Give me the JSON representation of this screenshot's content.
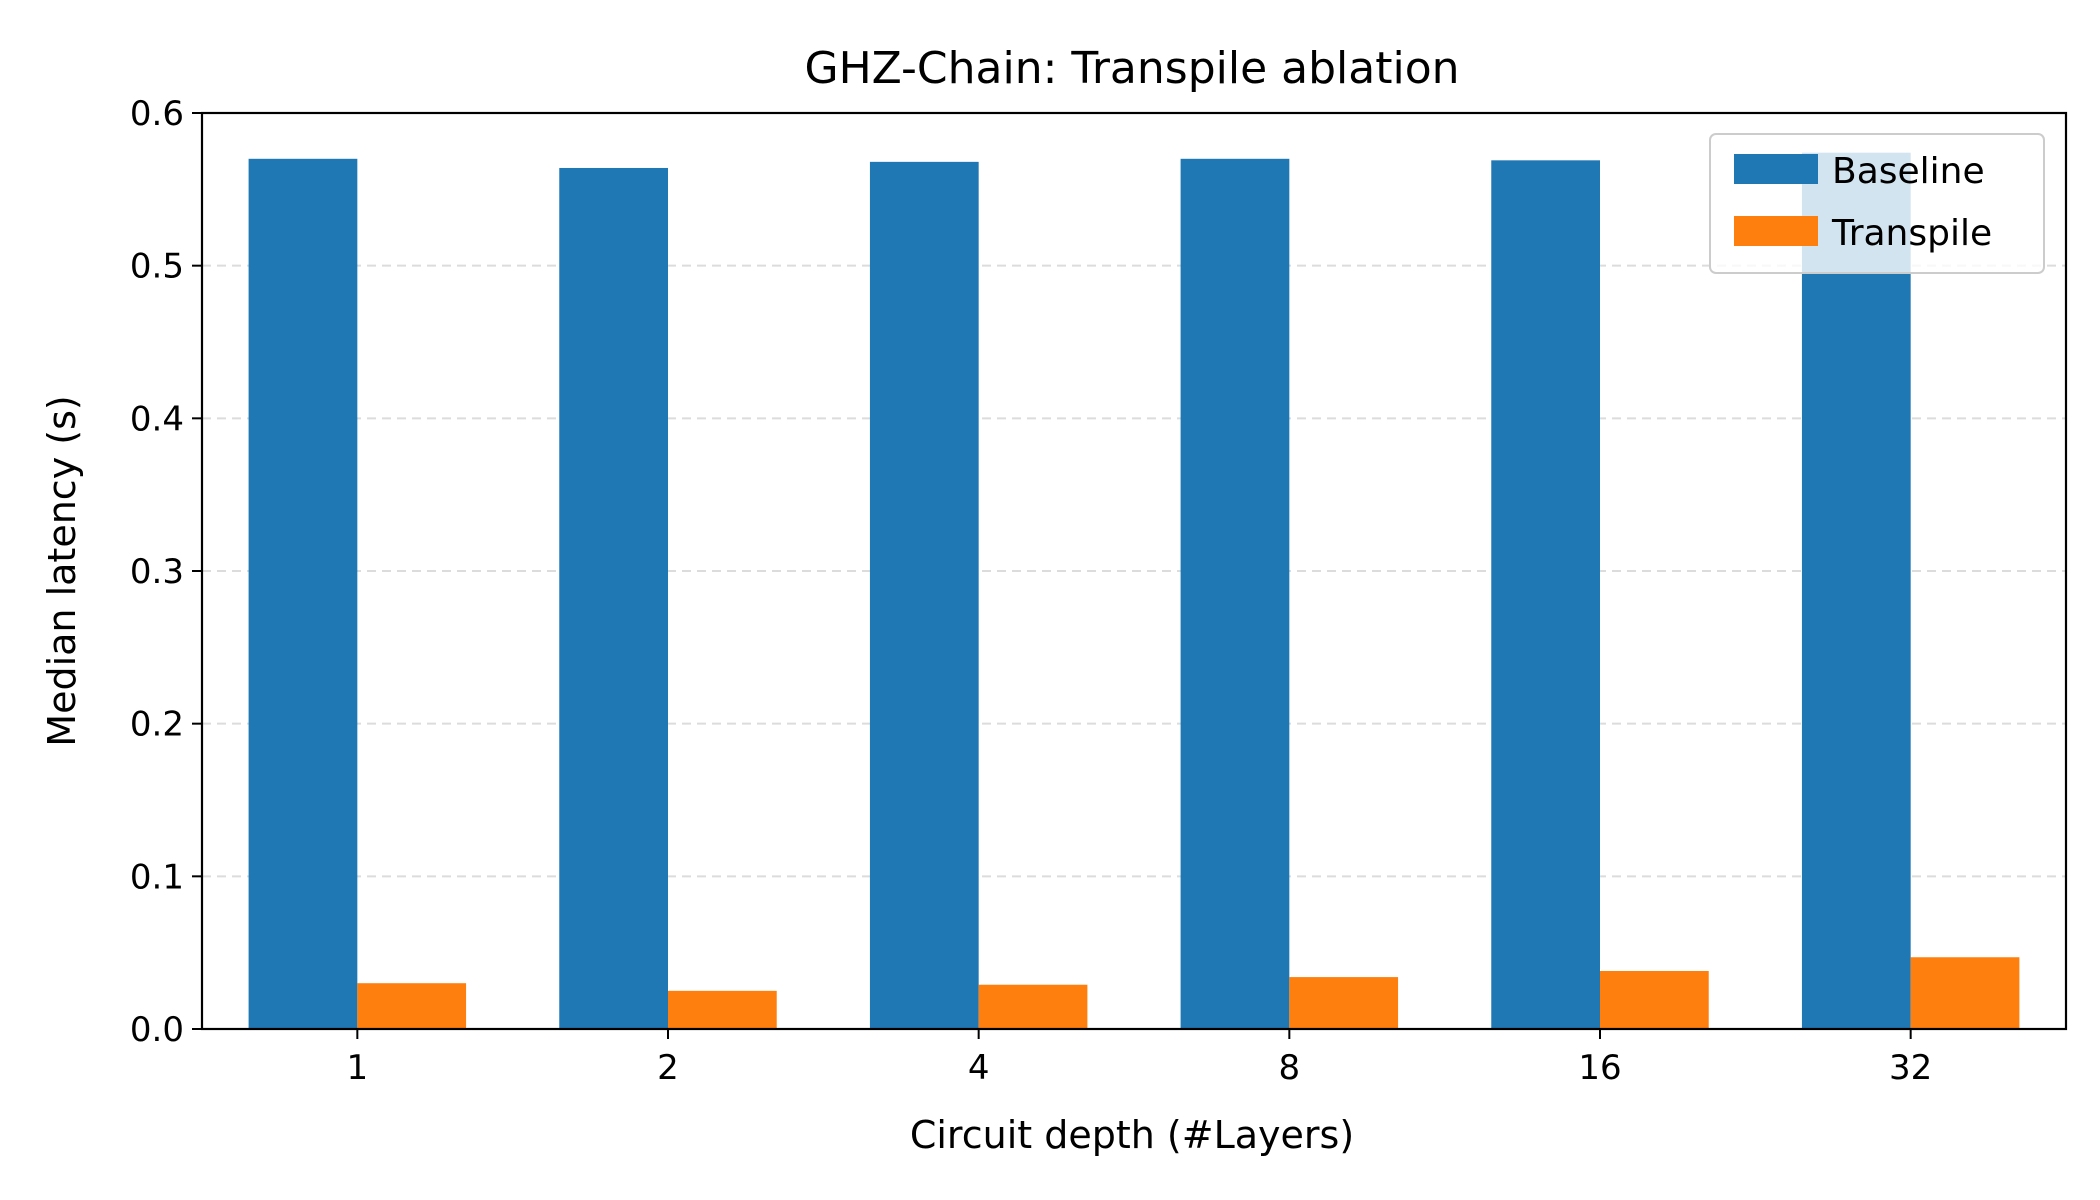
{
  "chart_data": {
    "type": "bar",
    "title": "GHZ-Chain: Transpile ablation",
    "xlabel": "Circuit depth (#Layers)",
    "ylabel": "Median latency (s)",
    "categories": [
      "1",
      "2",
      "4",
      "8",
      "16",
      "32"
    ],
    "series": [
      {
        "name": "Baseline",
        "color": "#1f77b4",
        "values": [
          0.57,
          0.564,
          0.568,
          0.57,
          0.569,
          0.574
        ]
      },
      {
        "name": "Transpile",
        "color": "#ff7f0e",
        "values": [
          0.03,
          0.025,
          0.029,
          0.034,
          0.038,
          0.047
        ]
      }
    ],
    "ylim": [
      0.0,
      0.6
    ],
    "yticks": [
      "0.0",
      "0.1",
      "0.2",
      "0.3",
      "0.4",
      "0.5",
      "0.6"
    ],
    "grid": "y-dashed",
    "legend_position": "top-right"
  }
}
